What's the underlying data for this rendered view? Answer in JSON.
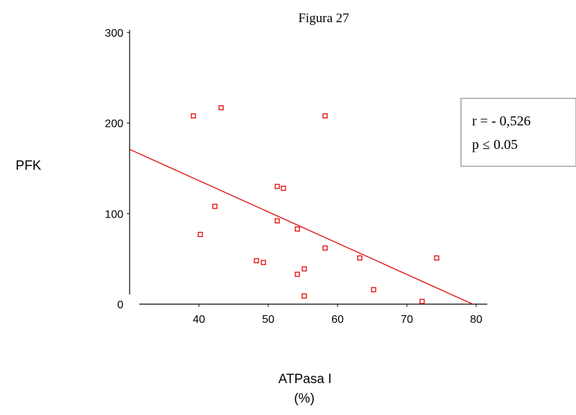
{
  "chart_data": {
    "type": "scatter",
    "title": "Figura 27",
    "xlabel": "ATPasa I",
    "xlabel_unit": "(%)",
    "ylabel": "PFK",
    "xlim": [
      30,
      82
    ],
    "ylim": [
      0,
      300
    ],
    "xticks": [
      40,
      50,
      60,
      70,
      80
    ],
    "yticks": [
      0,
      100,
      200,
      300
    ],
    "grid": false,
    "marker": "open-square",
    "color": "#e00000",
    "points": [
      {
        "x": 39.2,
        "y": 208
      },
      {
        "x": 40.2,
        "y": 77
      },
      {
        "x": 42.3,
        "y": 108
      },
      {
        "x": 43.2,
        "y": 217
      },
      {
        "x": 48.3,
        "y": 48
      },
      {
        "x": 49.3,
        "y": 46
      },
      {
        "x": 51.3,
        "y": 130
      },
      {
        "x": 52.2,
        "y": 128
      },
      {
        "x": 51.3,
        "y": 92
      },
      {
        "x": 54.2,
        "y": 83
      },
      {
        "x": 54.2,
        "y": 33
      },
      {
        "x": 55.2,
        "y": 39
      },
      {
        "x": 55.2,
        "y": 9
      },
      {
        "x": 58.2,
        "y": 208
      },
      {
        "x": 58.2,
        "y": 62
      },
      {
        "x": 63.2,
        "y": 51
      },
      {
        "x": 65.2,
        "y": 16
      },
      {
        "x": 72.2,
        "y": 3
      },
      {
        "x": 74.3,
        "y": 51
      }
    ],
    "regression_line": {
      "x": [
        30,
        79.5
      ],
      "y": [
        171,
        0
      ]
    },
    "stats_box": {
      "line1": "r = - 0,526",
      "line2": "p ≤ 0.05"
    }
  }
}
